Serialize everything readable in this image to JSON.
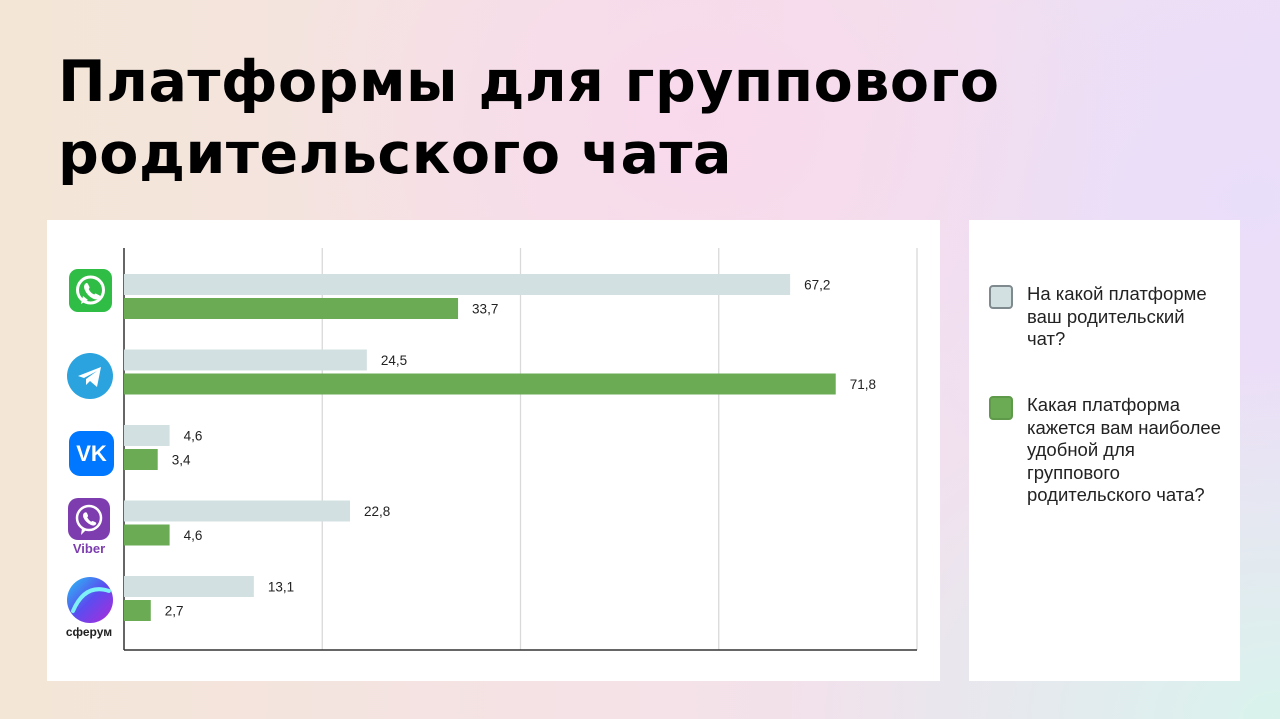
{
  "slide": {
    "title_line1": "Платформы для группового",
    "title_line2": "родительского чата"
  },
  "colors": {
    "series1": "#d3e0e2",
    "series2": "#6aab53",
    "grid": "#d9d9d9",
    "axis": "#333333"
  },
  "icons": [
    {
      "name": "whatsapp-icon"
    },
    {
      "name": "telegram-icon"
    },
    {
      "name": "vk-icon"
    },
    {
      "name": "viber-icon",
      "label": "Viber"
    },
    {
      "name": "sferum-icon",
      "label": "сферум"
    }
  ],
  "chart_data": {
    "type": "bar",
    "orientation": "horizontal",
    "categories": [
      "WhatsApp",
      "Telegram",
      "VK",
      "Viber",
      "Сферум"
    ],
    "series": [
      {
        "name": "На какой платформе ваш родительский чат?",
        "values": [
          67.2,
          24.5,
          4.6,
          22.8,
          13.1
        ],
        "color": "#d3e0e2"
      },
      {
        "name": "Какая платформа кажется вам наиболее удобной для группового родительского чата?",
        "values": [
          33.7,
          71.8,
          3.4,
          4.6,
          2.7
        ],
        "color": "#6aab53"
      }
    ],
    "data_labels": [
      [
        "67,2",
        "24,5",
        "4,6",
        "22,8",
        "13,1"
      ],
      [
        "33,7",
        "71,8",
        "3,4",
        "4,6",
        "2,7"
      ]
    ],
    "xlim": [
      0,
      80
    ],
    "grid": true,
    "legend": "right"
  }
}
